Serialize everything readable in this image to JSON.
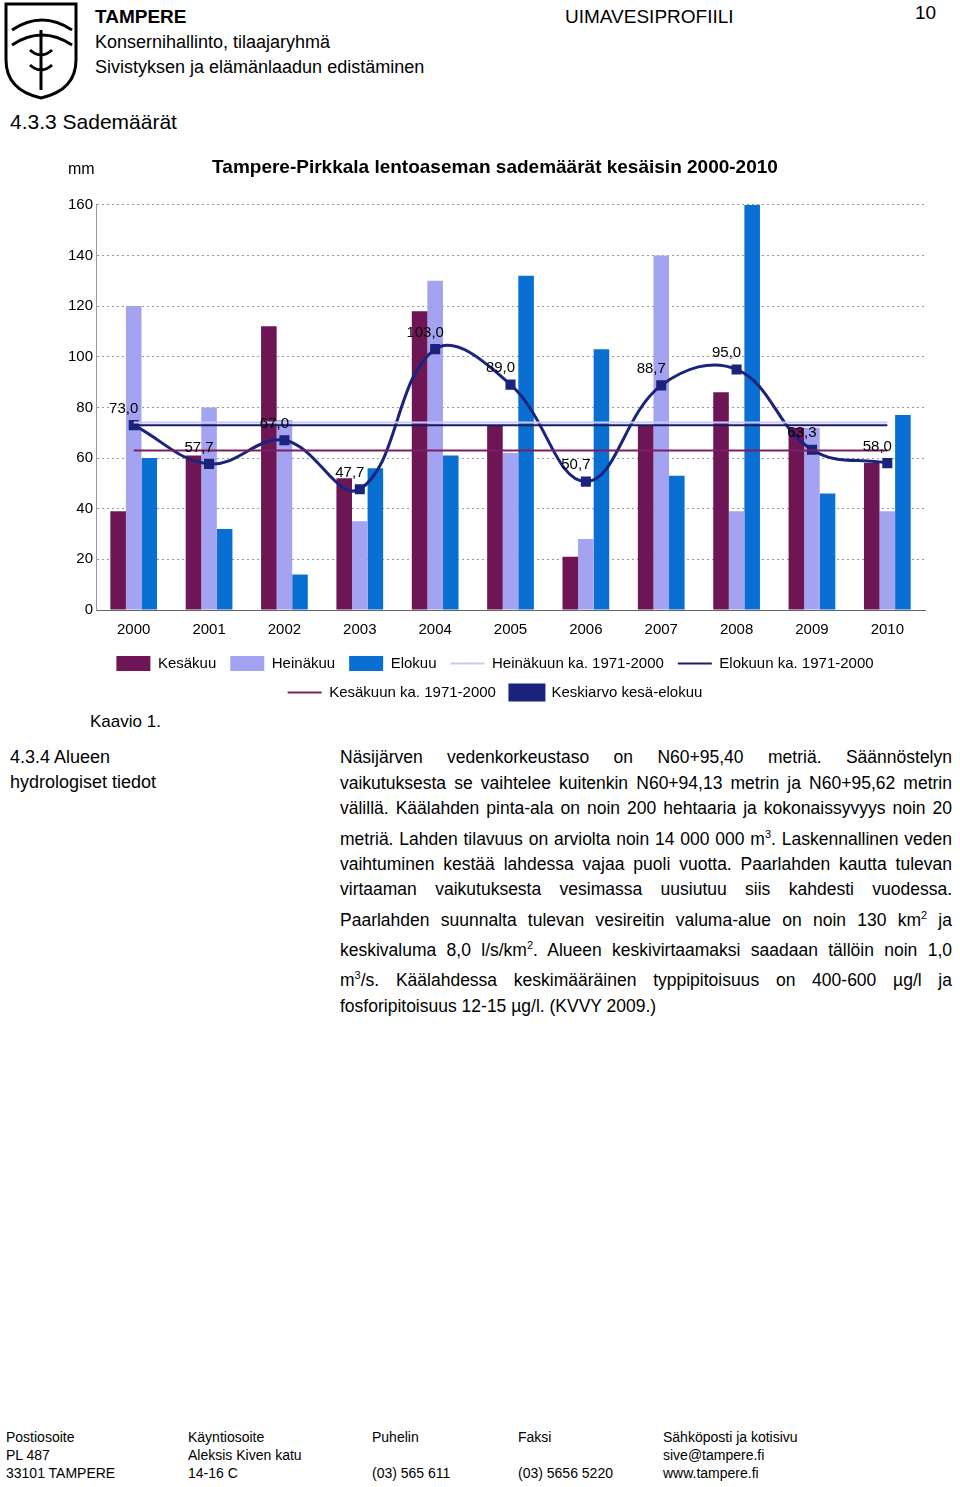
{
  "header": {
    "city": "TAMPERE",
    "unit": "Konsernihallinto, tilaajaryhmä",
    "subunit": "Sivistyksen ja elämänlaadun edistäminen",
    "doc_title": "UIMAVESIPROFIILI",
    "page": "10"
  },
  "section_1": {
    "heading": "4.3.3 Sademäärät",
    "caption": "Kaavio 1."
  },
  "chart_data": {
    "type": "bar",
    "title": "Tampere-Pirkkala lentoaseman sademäärät kesäisin 2000-2010",
    "ylabel": "mm",
    "categories": [
      "2000",
      "2001",
      "2002",
      "2003",
      "2004",
      "2005",
      "2006",
      "2007",
      "2008",
      "2009",
      "2010"
    ],
    "series": [
      {
        "name": "Kesäkuu",
        "type": "bar",
        "color": "#6e1556",
        "values": [
          39,
          61,
          112,
          52,
          118,
          73,
          21,
          73,
          86,
          72,
          58
        ]
      },
      {
        "name": "Heinäkuu",
        "type": "bar",
        "color": "#a3a3f2",
        "values": [
          120,
          80,
          75,
          35,
          130,
          62,
          28,
          140,
          39,
          72,
          39
        ]
      },
      {
        "name": "Elokuu",
        "type": "bar",
        "color": "#0a6fd3",
        "values": [
          60,
          32,
          14,
          56,
          61,
          132,
          103,
          53,
          160,
          46,
          77
        ]
      },
      {
        "name": "Heinäkuun ka. 1971-2000",
        "type": "line",
        "color": "#c9c9f7",
        "marker": "none",
        "line_style": "solid",
        "values": [
          74,
          74,
          74,
          74,
          74,
          74,
          74,
          74,
          74,
          74,
          74
        ]
      },
      {
        "name": "Elokuun ka. 1971-2000",
        "type": "line",
        "color": "#1b1b6b",
        "marker": "none",
        "line_style": "solid",
        "values": [
          73,
          73,
          73,
          73,
          73,
          73,
          73,
          73,
          73,
          73,
          73
        ]
      },
      {
        "name": "Kesäkuun ka. 1971-2000",
        "type": "line",
        "color": "#7a1f62",
        "marker": "none",
        "line_style": "solid",
        "values": [
          63,
          63,
          63,
          63,
          63,
          63,
          63,
          63,
          63,
          63,
          63
        ]
      },
      {
        "name": "Keskiarvo kesä-elokuu",
        "type": "line",
        "color": "#1a237e",
        "marker": "square",
        "line_style": "solid",
        "data_labels": true,
        "values": [
          73.0,
          57.7,
          67.0,
          47.7,
          103.0,
          89.0,
          50.7,
          88.7,
          95.0,
          63.3,
          58.0
        ],
        "value_labels": [
          "73,0",
          "57,7",
          "67,0",
          "47,7",
          "103,0",
          "89,0",
          "50,7",
          "88,7",
          "95,0",
          "63,3",
          "58,0"
        ]
      }
    ],
    "ylim": [
      0,
      160
    ],
    "yticks": [
      0,
      20,
      40,
      60,
      80,
      100,
      120,
      140,
      160
    ],
    "grid": true,
    "legend": "bottom"
  },
  "section_2": {
    "number": "4.3.4",
    "heading": "Alueen hydrologiset tiedot",
    "paragraph": [
      "Näsijärven vedenkorkeustaso on N60+95,40 metriä. Säännöstelyn vaikutuksesta se vaihtelee kuitenkin N60+94,13 metrin ja N60+95,62 metrin välillä. Käälahden pinta-ala on noin 200 hehtaaria ja kokonaissyvyys noin 20 metriä. Lahden tilavuus on arviolta noin 14 000 000 m",
      {
        "sup": "3"
      },
      ". Laskennallinen veden vaihtuminen kestää lahdessa vajaa puoli vuotta. Paarlahden kautta tulevan virtaaman vaikutuksesta vesimassa uusiutuu siis kahdesti vuodessa. Paarlahden suunnalta tulevan vesireitin valuma-alue on noin 130 km",
      {
        "sup": "2"
      },
      " ja keskivaluma 8,0 l/s/km",
      {
        "sup": "2"
      },
      ". Alueen keskivirtaamaksi saadaan tällöin noin 1,0 m",
      {
        "sup": "3"
      },
      "/s. Käälahdessa keskimääräinen typpipitoisuus on 400-600 µg/l ja fosforipitoisuus 12-15 µg/l. (KVVY 2009.)"
    ]
  },
  "footer": {
    "rows": [
      [
        "Postiosoite",
        "Käyntiosoite",
        "Puhelin",
        "Faksi",
        "Sähköposti ja kotisivu"
      ],
      [
        "PL 487",
        "Aleksis Kiven katu",
        null,
        null,
        "sive@tampere.fi"
      ],
      [
        "33101 TAMPERE",
        "14-16 C",
        "(03) 565 611",
        "(03) 5656 5220",
        "www.tampere.fi"
      ]
    ]
  }
}
